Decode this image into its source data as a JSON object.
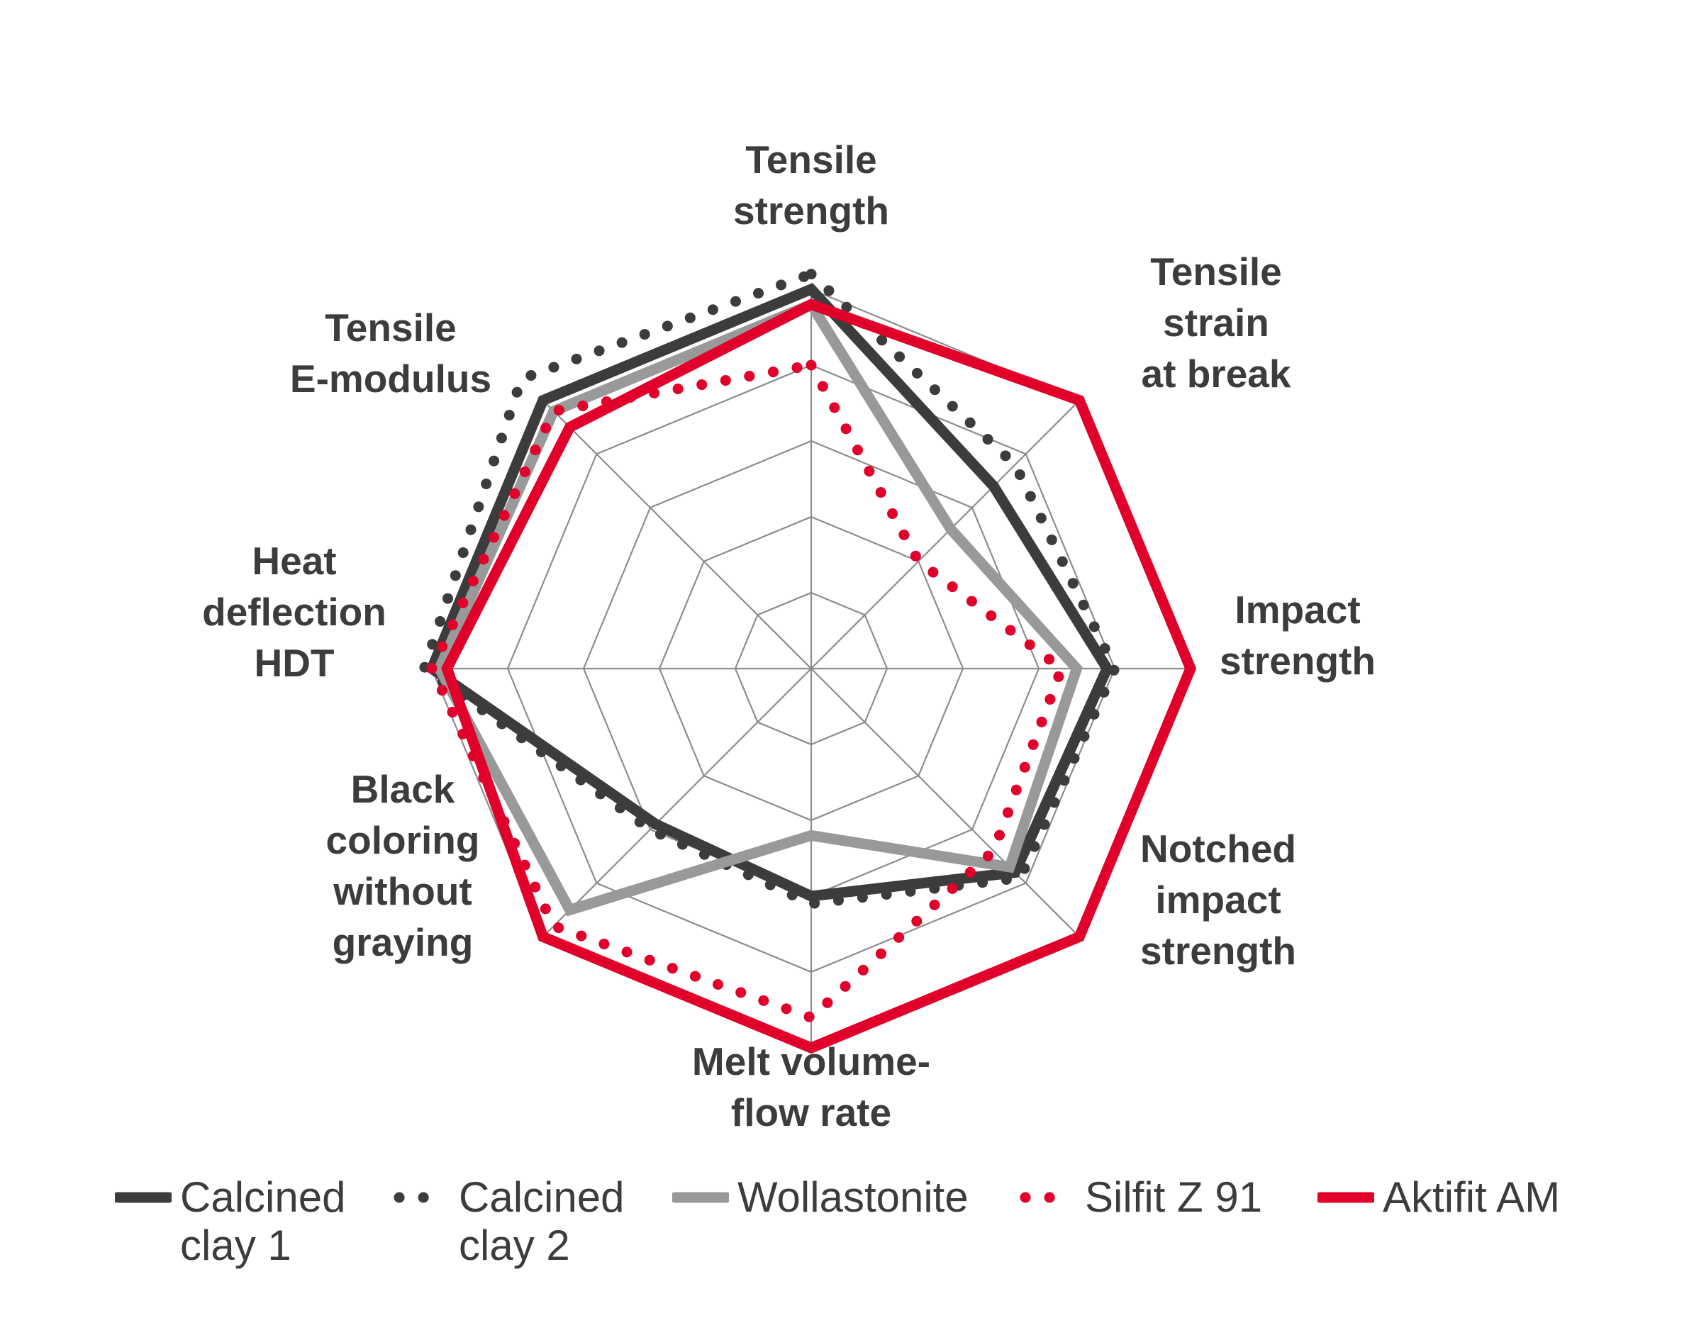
{
  "chart_data": {
    "type": "radar",
    "axes": [
      "Tensile\nstrength",
      "Tensile\nstrain\nat break",
      "Impact\nstrength",
      "Notched\nimpact\nstrength",
      "Melt volume-\nflow rate",
      "Black\ncoloring\nwithout\ngraying",
      "Heat\ndeflection\nHDT",
      "Tensile\nE-modulus"
    ],
    "rlim": [
      0,
      5
    ],
    "grid": true,
    "legend_position": "bottom",
    "series": [
      {
        "name": "Calcined\nclay 1",
        "style": "solid-thick",
        "color": "#3c3c3c",
        "values": [
          5.0,
          3.4,
          3.9,
          3.8,
          3.0,
          2.9,
          5.0,
          5.0
        ]
      },
      {
        "name": "Calcined\nclay 2",
        "style": "dotted",
        "color": "#3c3c3c",
        "values": [
          5.2,
          3.8,
          4.0,
          3.9,
          3.1,
          3.0,
          5.1,
          5.4
        ]
      },
      {
        "name": "Wollastonite",
        "style": "solid-thick",
        "color": "#999999",
        "values": [
          4.8,
          2.6,
          3.5,
          3.7,
          2.2,
          4.5,
          4.9,
          4.8
        ]
      },
      {
        "name": "Silfit Z 91",
        "style": "dotted",
        "color": "#e0002a",
        "values": [
          4.0,
          2.0,
          3.3,
          3.4,
          4.6,
          4.8,
          5.0,
          4.8
        ]
      },
      {
        "name": "Aktifit AM",
        "style": "solid-thick",
        "color": "#e0002a",
        "values": [
          4.8,
          5.0,
          5.0,
          5.0,
          5.0,
          5.0,
          4.8,
          4.5
        ]
      }
    ]
  }
}
